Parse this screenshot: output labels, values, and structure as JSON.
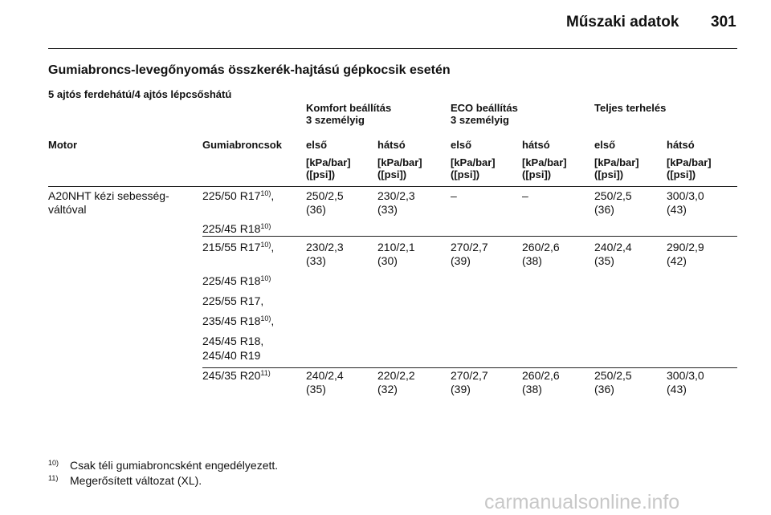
{
  "header": {
    "title": "Műszaki adatok",
    "page": "301"
  },
  "section_title": "Gumiabroncs-levegőnyomás összkerék-hajtású gépkocsik esetén",
  "subtitle": "5 ajtós ferdehátú/4 ajtós lépcsőshátú",
  "table": {
    "groups": [
      [
        "Komfort beállítás",
        "3 személyig"
      ],
      [
        "ECO beállítás",
        "3 személyig"
      ],
      [
        "Teljes terhelés"
      ]
    ],
    "columns": [
      "Motor",
      "Gumiabroncsok",
      "első",
      "hátsó",
      "első",
      "hátsó",
      "első",
      "hátsó"
    ],
    "units": [
      [
        "[kPa/bar]",
        "([psi])"
      ],
      [
        "[kPa/bar]",
        "([psi])"
      ],
      [
        "[kPa/bar]",
        "([psi])"
      ],
      [
        "[kPa/bar]",
        "([psi])"
      ],
      [
        "[kPa/bar]",
        "([psi])"
      ],
      [
        "[kPa/bar]",
        "([psi])"
      ]
    ],
    "rows": [
      {
        "motor": [
          "A20NHT kézi sebesség-",
          "váltóval"
        ],
        "tires": [
          {
            "text": "225/50 R17",
            "sup": "10)",
            "after": ","
          },
          {
            "text": "225/45 R18",
            "sup": "10)"
          }
        ],
        "values": [
          [
            "250/2,5",
            "(36)"
          ],
          [
            "230/2,3",
            "(33)"
          ],
          [
            "–"
          ],
          [
            "–"
          ],
          [
            "250/2,5",
            "(36)"
          ],
          [
            "300/3,0",
            "(43)"
          ]
        ]
      },
      {
        "tires": [
          {
            "text": "215/55 R17",
            "sup": "10)",
            "after": ","
          },
          {
            "text": "225/45 R18",
            "sup": "10)"
          },
          {
            "text": "225/55 R17,"
          },
          {
            "text": "235/45 R18",
            "sup": "10)",
            "after": ","
          },
          {
            "text": "245/45 R18,"
          },
          {
            "text": "245/40 R19"
          }
        ],
        "values": [
          [
            "230/2,3",
            "(33)"
          ],
          [
            "210/2,1",
            "(30)"
          ],
          [
            "270/2,7",
            "(39)"
          ],
          [
            "260/2,6",
            "(38)"
          ],
          [
            "240/2,4",
            "(35)"
          ],
          [
            "290/2,9",
            "(42)"
          ]
        ]
      },
      {
        "tires": [
          {
            "text": "245/35 R20",
            "sup": "11)"
          }
        ],
        "values": [
          [
            "240/2,4",
            "(35)"
          ],
          [
            "220/2,2",
            "(32)"
          ],
          [
            "270/2,7",
            "(39)"
          ],
          [
            "260/2,6",
            "(38)"
          ],
          [
            "250/2,5",
            "(36)"
          ],
          [
            "300/3,0",
            "(43)"
          ]
        ]
      }
    ]
  },
  "footnotes": [
    {
      "mark": "10)",
      "text": "Csak téli gumiabroncsként engedélyezett."
    },
    {
      "mark": "11)",
      "text": "Megerősített változat (XL)."
    }
  ],
  "watermark": "carmanualsonline.info"
}
